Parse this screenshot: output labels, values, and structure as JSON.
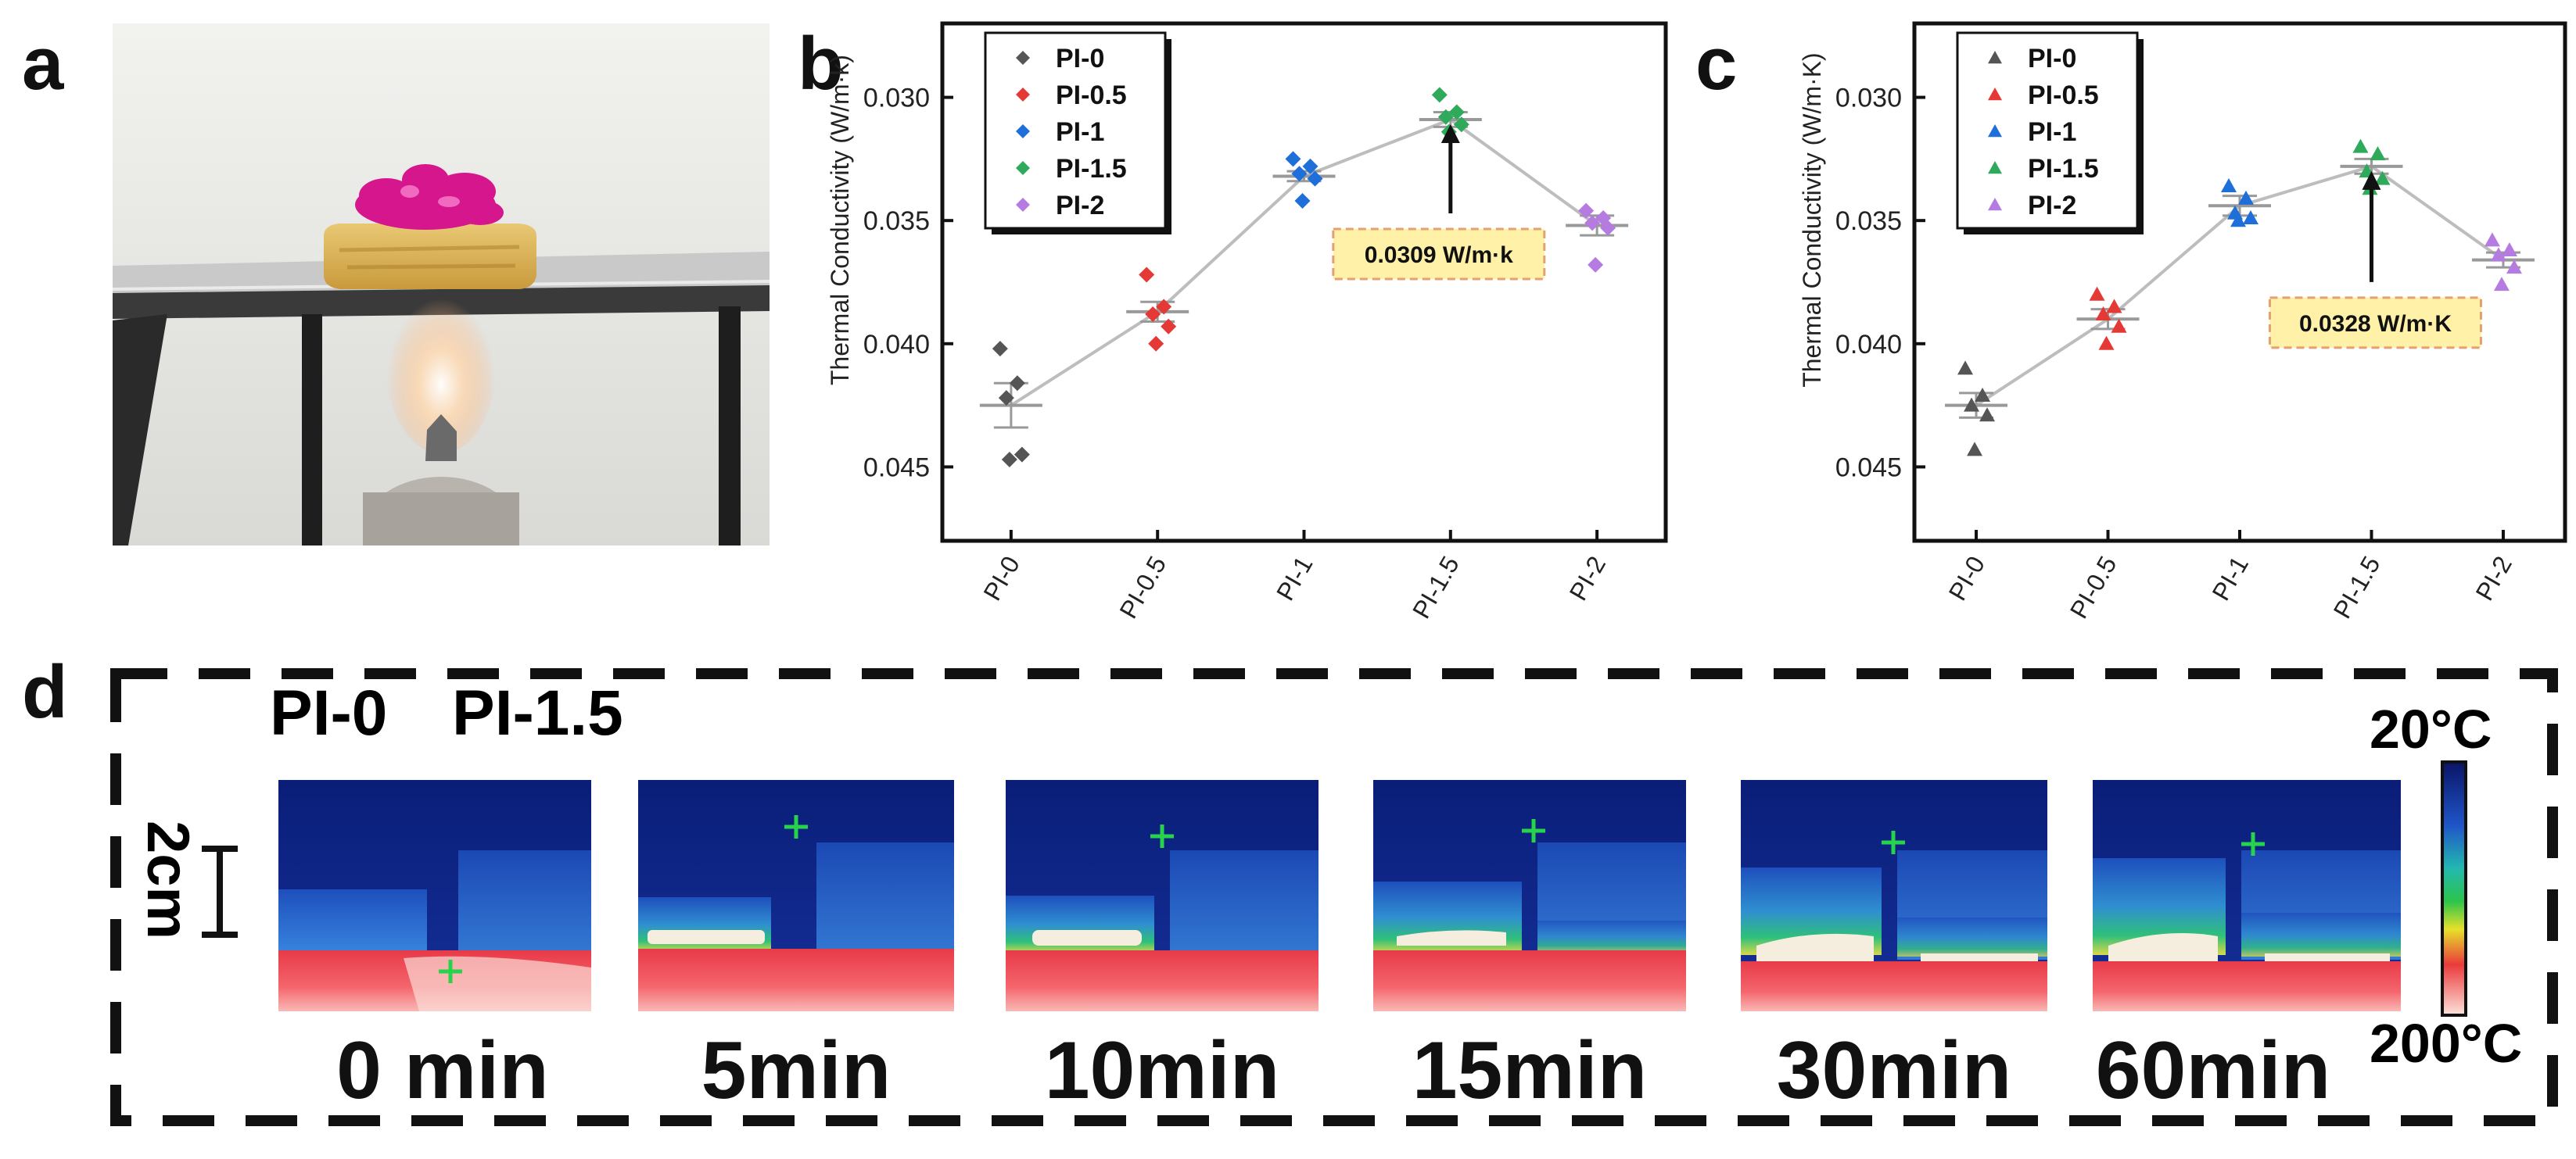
{
  "panel_labels": [
    "a",
    "b",
    "c",
    "d"
  ],
  "colors": {
    "PI-0": "#555555",
    "PI-0.5": "#e53935",
    "PI-1": "#1e6fd9",
    "PI-1.5": "#2eaa5a",
    "PI-2": "#b67be0",
    "note_bg": "#fff1a8",
    "note_border": "#e6a070",
    "connector": "#bdbdbd"
  },
  "chart_data": [
    {
      "type": "scatter",
      "panel": "b",
      "marker": "diamond",
      "ylabel": "Thermal Conductivity (W/m·k)",
      "xlabel": "",
      "ylim": [
        0.027,
        0.048
      ],
      "y_inverted": true,
      "yticks": [
        "0.030",
        "0.035",
        "0.040",
        "0.045"
      ],
      "ytick_values": [
        0.03,
        0.035,
        0.04,
        0.045
      ],
      "categories": [
        "PI-0",
        "PI-0.5",
        "PI-1",
        "PI-1.5",
        "PI-2"
      ],
      "legend": [
        "PI-0",
        "PI-0.5",
        "PI-1",
        "PI-1.5",
        "PI-2"
      ],
      "legend_position": "top-left",
      "means": [
        0.0425,
        0.0387,
        0.0332,
        0.0309,
        0.0352
      ],
      "errors": [
        0.0009,
        0.0004,
        0.0002,
        0.0003,
        0.0004
      ],
      "points": [
        [
          0.0402,
          0.0416,
          0.0422,
          0.0445,
          0.0447
        ],
        [
          0.0372,
          0.0385,
          0.0388,
          0.0393,
          0.04
        ],
        [
          0.0325,
          0.0328,
          0.0331,
          0.0333,
          0.0342
        ],
        [
          0.0299,
          0.0306,
          0.0308,
          0.0311,
          0.0314
        ],
        [
          0.0346,
          0.0349,
          0.0351,
          0.0353,
          0.0368
        ]
      ],
      "annotation": {
        "text": "0.0309 W/m·k",
        "category": "PI-1.5"
      }
    },
    {
      "type": "scatter",
      "panel": "c",
      "marker": "triangle",
      "ylabel": "Thermal Conductivity (W/m·K)",
      "xlabel": "",
      "ylim": [
        0.027,
        0.048
      ],
      "y_inverted": true,
      "yticks": [
        "0.030",
        "0.035",
        "0.040",
        "0.045"
      ],
      "ytick_values": [
        0.03,
        0.035,
        0.04,
        0.045
      ],
      "categories": [
        "PI-0",
        "PI-0.5",
        "PI-1",
        "PI-1.5",
        "PI-2"
      ],
      "legend": [
        "PI-0",
        "PI-0.5",
        "PI-1",
        "PI-1.5",
        "PI-2"
      ],
      "legend_position": "top-left",
      "means": [
        0.0425,
        0.039,
        0.0344,
        0.0328,
        0.0366
      ],
      "errors": [
        0.0005,
        0.0004,
        0.0004,
        0.0003,
        0.0003
      ],
      "points": [
        [
          0.041,
          0.0421,
          0.0425,
          0.0429,
          0.0443
        ],
        [
          0.038,
          0.0385,
          0.0388,
          0.0393,
          0.04
        ],
        [
          0.0336,
          0.0341,
          0.0347,
          0.0349,
          0.035
        ],
        [
          0.032,
          0.0323,
          0.033,
          0.0333,
          0.0337
        ],
        [
          0.0358,
          0.0362,
          0.0364,
          0.0369,
          0.0376
        ]
      ],
      "annotation": {
        "text": "0.0328 W/m·K",
        "category": "PI-1.5"
      }
    }
  ],
  "panel_d": {
    "sample_labels": [
      "PI-0",
      "PI-1.5"
    ],
    "scale_bar": "2cm",
    "colorbar_top": "20°C",
    "colorbar_bottom": "200°C",
    "time_labels": [
      "0 min",
      "5min",
      "10min",
      "15min",
      "30min",
      "60min"
    ]
  }
}
